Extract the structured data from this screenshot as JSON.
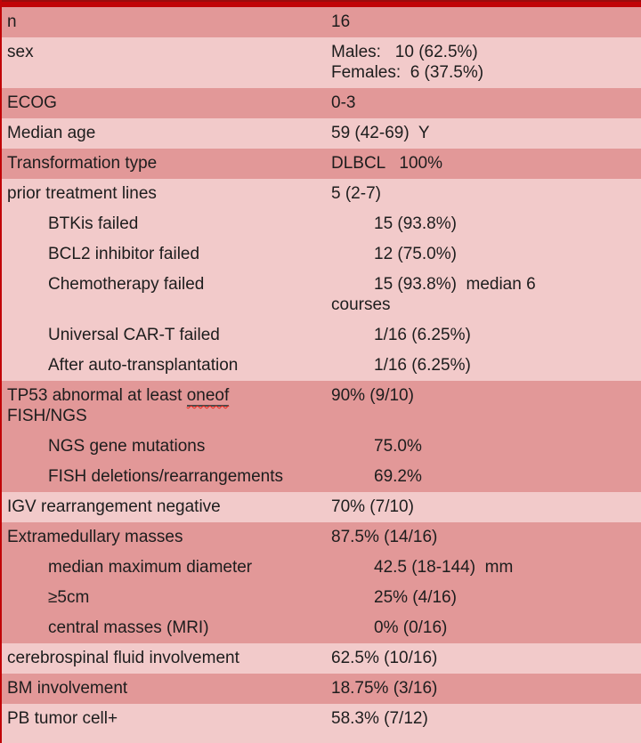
{
  "table": {
    "title": "patient-characteristics-table",
    "colors": {
      "top_bar": "#c10407",
      "top_bar_edge": "#9b0d0d",
      "left_border": "#c10407",
      "dark_row": "#e29898",
      "light_row": "#f2caca",
      "text": "#1d1d1d",
      "spellcheck_squiggle": "#f02419"
    },
    "rows": [
      {
        "label": "n",
        "value": "16",
        "shade": "dark",
        "indent": false
      },
      {
        "label": "sex",
        "value": "Males:   10 (62.5%)\nFemales:  6 (37.5%)",
        "shade": "light",
        "indent": false
      },
      {
        "label": "ECOG",
        "value": "0-3",
        "shade": "dark",
        "indent": false
      },
      {
        "label": "Median age",
        "value": "59 (42-69)  Y",
        "shade": "light",
        "indent": false
      },
      {
        "label": "Transformation type",
        "value": "DLBCL   100%",
        "shade": "dark",
        "indent": false
      },
      {
        "label": "prior treatment lines",
        "value": "5 (2-7)",
        "shade": "light",
        "indent": false
      },
      {
        "label": "BTKis failed",
        "value": "15 (93.8%)",
        "shade": "light",
        "indent": true
      },
      {
        "label": "BCL2 inhibitor failed",
        "value": "12 (75.0%)",
        "shade": "light",
        "indent": true
      },
      {
        "label": "Chemotherapy failed",
        "value": "15 (93.8%)  median 6\ncourses",
        "shade": "light",
        "indent": true
      },
      {
        "label": "Universal CAR-T failed",
        "value": "1/16 (6.25%)",
        "shade": "light",
        "indent": true
      },
      {
        "label": "After auto-transplantation",
        "value": "1/16 (6.25%)",
        "shade": "light",
        "indent": true
      },
      {
        "label_parts": [
          {
            "text": "TP53 abnormal at least "
          },
          {
            "text": "oneof",
            "misspelled": true
          },
          {
            "text": "\nFISH/NGS"
          }
        ],
        "value": "90% (9/10)",
        "shade": "dark",
        "indent": false
      },
      {
        "label": "NGS gene mutations",
        "value": "75.0%",
        "shade": "dark",
        "indent": true
      },
      {
        "label": "FISH deletions/rearrangements",
        "value": "69.2%",
        "shade": "dark",
        "indent": true
      },
      {
        "label": "IGV rearrangement negative",
        "value": "70% (7/10)",
        "shade": "light",
        "indent": false
      },
      {
        "label": "Extramedullary masses",
        "value": "87.5% (14/16)",
        "shade": "dark",
        "indent": false
      },
      {
        "label": "median maximum diameter",
        "value": "42.5 (18-144)  mm",
        "shade": "dark",
        "indent": true
      },
      {
        "label": "≥5cm",
        "value": "25% (4/16)",
        "shade": "dark",
        "indent": true
      },
      {
        "label": "central masses (MRI)",
        "value": "0% (0/16)",
        "shade": "dark",
        "indent": true
      },
      {
        "label": "cerebrospinal fluid involvement",
        "value": "62.5% (10/16)",
        "shade": "light",
        "indent": false
      },
      {
        "label": "BM involvement",
        "value": "18.75% (3/16)",
        "shade": "dark",
        "indent": false
      },
      {
        "label": "PB tumor cell+",
        "value": "58.3% (7/12)",
        "shade": "light",
        "indent": false
      }
    ]
  }
}
